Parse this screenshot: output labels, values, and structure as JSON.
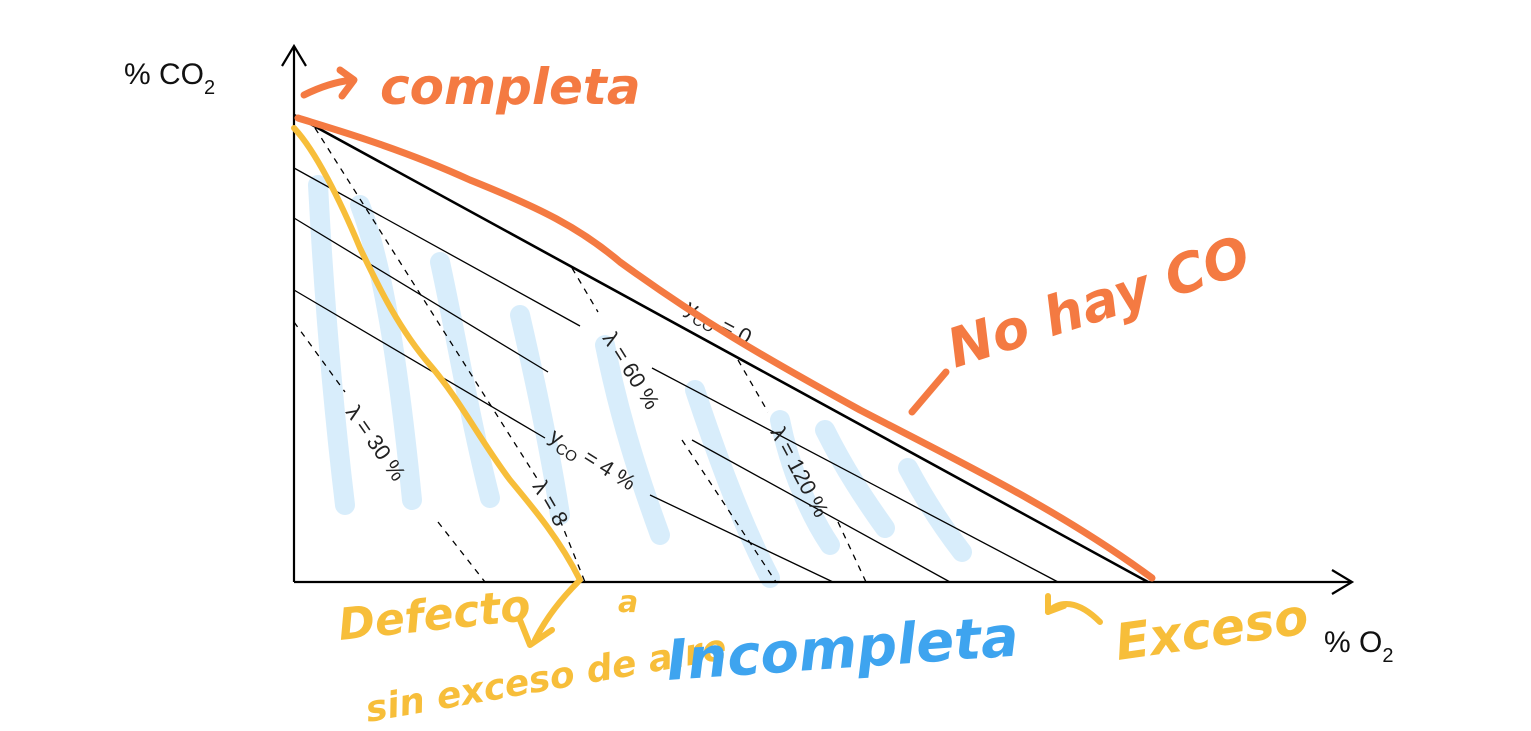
{
  "axes": {
    "y_label": "% CO",
    "y_subscript": "2",
    "x_label": "% O",
    "x_subscript": "2"
  },
  "chart_labels": {
    "yco_zero": "y",
    "yco_zero_sub": "CO",
    "yco_zero_value": " = 0",
    "yco_four": "y",
    "yco_four_sub": "CO",
    "yco_four_value": " = 4 %",
    "lambda_30": "λ = 30 %",
    "lambda_60": "λ = 60 %",
    "lambda_120": "λ = 120 %",
    "lambda_fragment": "λ = 8"
  },
  "annotations": {
    "completa": "completa",
    "no_hay_co": "No hay CO",
    "defecto": "Defecto",
    "sin_exceso_de_aire": "sin exceso de aire",
    "a": "a",
    "incompleta": "Incompleta",
    "exceso": "Exceso"
  },
  "colors": {
    "orange": "#f47a42",
    "yellow": "#f7be3a",
    "blue": "#3ea4ef",
    "hatch": "#d6ecfb"
  }
}
